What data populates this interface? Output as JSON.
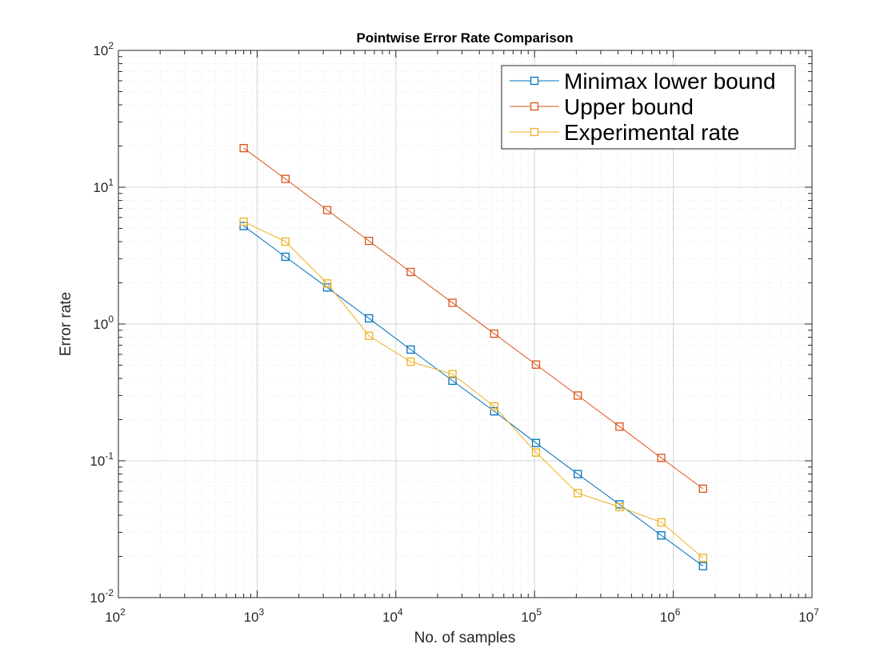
{
  "chart_data": {
    "type": "line",
    "scale": "log-log",
    "title": "Pointwise Error Rate Comparison",
    "xlabel": "No. of samples",
    "ylabel": "Error rate",
    "xlim": [
      100,
      10000000
    ],
    "ylim": [
      0.01,
      100
    ],
    "grid": true,
    "legend_location": "top-right",
    "x_ticks": [
      {
        "base": "10",
        "exp": "2"
      },
      {
        "base": "10",
        "exp": "3"
      },
      {
        "base": "10",
        "exp": "4"
      },
      {
        "base": "10",
        "exp": "5"
      },
      {
        "base": "10",
        "exp": "6"
      },
      {
        "base": "10",
        "exp": "7"
      }
    ],
    "y_ticks": [
      {
        "base": "10",
        "exp": "-2"
      },
      {
        "base": "10",
        "exp": "-1"
      },
      {
        "base": "10",
        "exp": "0"
      },
      {
        "base": "10",
        "exp": "1"
      },
      {
        "base": "10",
        "exp": "2"
      }
    ],
    "x": [
      800,
      1600,
      3200,
      6400,
      12800,
      25600,
      51200,
      102400,
      204800,
      409600,
      819200,
      1638400
    ],
    "series": [
      {
        "name": "Minimax lower bound",
        "color": "#0072BD",
        "values": [
          5.2,
          3.1,
          1.85,
          1.1,
          0.65,
          0.385,
          0.23,
          0.135,
          0.08,
          0.048,
          0.0285,
          0.017
        ]
      },
      {
        "name": "Upper bound",
        "color": "#D95319",
        "values": [
          19.3,
          11.5,
          6.8,
          4.05,
          2.4,
          1.43,
          0.85,
          0.505,
          0.3,
          0.178,
          0.105,
          0.0625
        ]
      },
      {
        "name": "Experimental rate",
        "color": "#EDB120",
        "values": [
          5.6,
          4.0,
          1.98,
          0.82,
          0.53,
          0.43,
          0.25,
          0.115,
          0.058,
          0.046,
          0.0355,
          0.0195
        ]
      }
    ]
  }
}
